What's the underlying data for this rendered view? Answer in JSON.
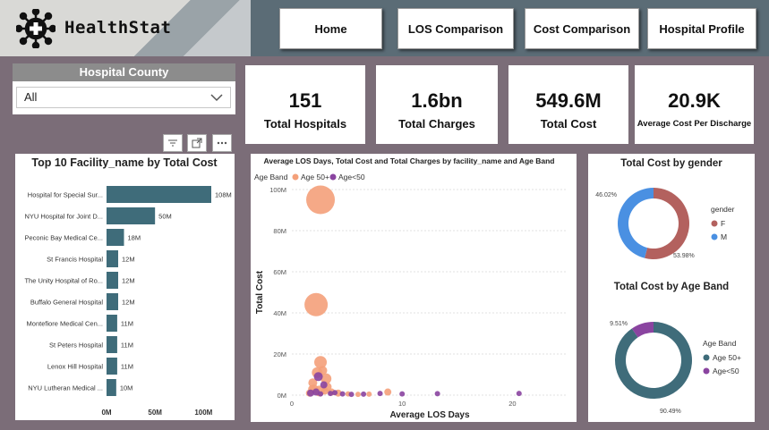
{
  "app": {
    "name": "HealthStat"
  },
  "nav": [
    {
      "label": "Home"
    },
    {
      "label": "LOS Comparison"
    },
    {
      "label": "Cost Comparison"
    },
    {
      "label": "Hospital Profile"
    }
  ],
  "slicer": {
    "title": "Hospital County",
    "value": "All"
  },
  "cards": [
    {
      "value": "151",
      "label": "Total Hospitals"
    },
    {
      "value": "1.6bn",
      "label": "Total Charges"
    },
    {
      "value": "549.6M",
      "label": "Total Cost"
    },
    {
      "value": "20.9K",
      "label": "Average Cost Per Discharge"
    }
  ],
  "chart_data": [
    {
      "type": "bar",
      "orientation": "horizontal",
      "title": "Top 10 Facility_name by Total Cost",
      "categories": [
        "Hospital for Special Sur...",
        "NYU Hospital for Joint D...",
        "Peconic Bay Medical Ce...",
        "St Francis Hospital",
        "The Unity Hospital of Ro...",
        "Buffalo General Hospital",
        "Montefiore Medical Cen...",
        "St Peters Hospital",
        "Lenox Hill Hospital",
        "NYU Lutheran Medical ..."
      ],
      "values": [
        108,
        50,
        18,
        12,
        12,
        12,
        11,
        11,
        11,
        10
      ],
      "data_labels": [
        "108M",
        "50M",
        "18M",
        "12M",
        "12M",
        "12M",
        "11M",
        "11M",
        "11M",
        "10M"
      ],
      "xticks": [
        "0M",
        "50M",
        "100M"
      ],
      "xlim": [
        0,
        120
      ],
      "color": "#3f6c7a"
    },
    {
      "type": "scatter",
      "title": "Average LOS Days, Total Cost and Total Charges by facility_name and Age Band",
      "legend_title": "Age Band",
      "xlabel": "Average LOS Days",
      "ylabel": "Total Cost",
      "xticks": [
        "0",
        "10",
        "20"
      ],
      "yticks": [
        "0M",
        "20M",
        "40M",
        "60M",
        "80M",
        "100M"
      ],
      "xlim": [
        0,
        25
      ],
      "ylim": [
        0,
        100
      ],
      "series": [
        {
          "name": "Age 50+",
          "color": "#f4a07a",
          "points": [
            [
              2.6,
              95,
              16
            ],
            [
              2.2,
              44,
              13
            ],
            [
              2.6,
              16,
              7
            ],
            [
              2.3,
              11,
              6
            ],
            [
              3.1,
              8,
              6
            ],
            [
              1.9,
              6,
              5
            ],
            [
              2.0,
              3,
              5
            ],
            [
              3.2,
              4,
              5
            ],
            [
              2.5,
              2,
              6
            ],
            [
              3.6,
              1.5,
              4
            ],
            [
              4.2,
              1,
              4
            ],
            [
              1.6,
              1,
              4
            ],
            [
              5.1,
              0.6,
              3
            ],
            [
              6.0,
              0.4,
              3
            ],
            [
              7.0,
              0.5,
              3
            ],
            [
              8.7,
              1.5,
              4
            ],
            [
              2.8,
              12,
              5
            ],
            [
              1.8,
              3,
              4
            ],
            [
              3.0,
              2,
              4
            ]
          ]
        },
        {
          "name": "Age<50",
          "color": "#8a44a0",
          "points": [
            [
              2.4,
              9,
              5
            ],
            [
              2.9,
              5,
              4
            ],
            [
              1.7,
              1,
              4
            ],
            [
              2.2,
              1.5,
              4
            ],
            [
              3.5,
              0.8,
              3
            ],
            [
              4.6,
              0.6,
              3
            ],
            [
              5.4,
              0.4,
              3
            ],
            [
              6.5,
              0.5,
              3
            ],
            [
              8.0,
              0.8,
              3
            ],
            [
              10.0,
              0.6,
              3
            ],
            [
              13.2,
              0.7,
              3
            ],
            [
              20.6,
              0.8,
              3
            ],
            [
              3.9,
              1.2,
              3
            ],
            [
              2.6,
              0.6,
              3
            ]
          ]
        }
      ]
    },
    {
      "type": "pie",
      "donut": true,
      "title": "Total Cost by gender",
      "legend_title": "gender",
      "slices": [
        {
          "label": "F",
          "value": 53.98,
          "data_label": "53.98%",
          "color": "#b3615e"
        },
        {
          "label": "M",
          "value": 46.02,
          "data_label": "46.02%",
          "color": "#4a90e2"
        }
      ]
    },
    {
      "type": "pie",
      "donut": true,
      "title": "Total Cost by Age Band",
      "legend_title": "Age Band",
      "slices": [
        {
          "label": "Age 50+",
          "value": 90.49,
          "data_label": "90.49%",
          "color": "#3f6c7a"
        },
        {
          "label": "Age<50",
          "value": 9.51,
          "data_label": "9.51%",
          "color": "#8a44a0"
        }
      ]
    }
  ]
}
